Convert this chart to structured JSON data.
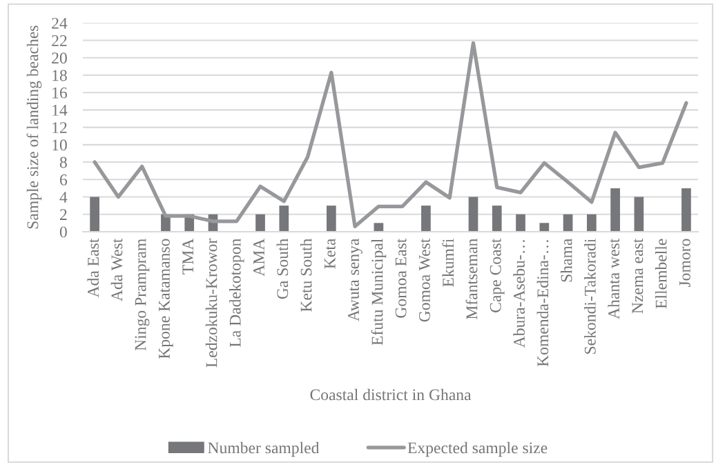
{
  "chart_data": {
    "type": "bar",
    "xlabel": "Coastal district in Ghana",
    "ylabel": "Sample size of landing beaches",
    "categories": [
      "Ada East",
      "Ada West",
      "Ningo Prampram",
      "Kpone Katamanso",
      "TMA",
      "Ledzokuku-Krowor",
      "La Dadekotopon",
      "AMA",
      "Ga South",
      "Ketu South",
      "Keta",
      "Awuta senya",
      "Efutu Municipal",
      "Gomoa East",
      "Gomoa West",
      "Ekumfi",
      "Mfantseman",
      "Cape Coast",
      "Abura-Asebu-…",
      "Komenda-Edina-…",
      "Shama",
      "Sekondi-Takoradi",
      "Ahanta west",
      "Nzema east",
      "Ellembelle",
      "Jomoro"
    ],
    "series": [
      {
        "name": "Number sampled",
        "color": "#76777b",
        "values": [
          4,
          null,
          null,
          2,
          2,
          2,
          null,
          2,
          3,
          null,
          3,
          null,
          1,
          null,
          3,
          null,
          4,
          3,
          2,
          1,
          2,
          2,
          5,
          4,
          null,
          5
        ]
      },
      {
        "name": "Expected sample size",
        "type": "line",
        "color": "#97989b",
        "values": [
          8.0,
          4.0,
          7.5,
          1.8,
          1.8,
          1.2,
          1.2,
          5.2,
          3.5,
          8.6,
          18.3,
          0.6,
          2.9,
          2.9,
          5.7,
          3.9,
          21.7,
          5.1,
          4.5,
          7.9,
          5.7,
          3.4,
          11.4,
          7.4,
          7.9,
          14.8
        ]
      }
    ],
    "ylim": [
      0,
      24
    ],
    "yticks": [
      0,
      2,
      4,
      6,
      8,
      10,
      12,
      14,
      16,
      18,
      20,
      22,
      24
    ],
    "grid": "y",
    "legend": "bottom"
  }
}
